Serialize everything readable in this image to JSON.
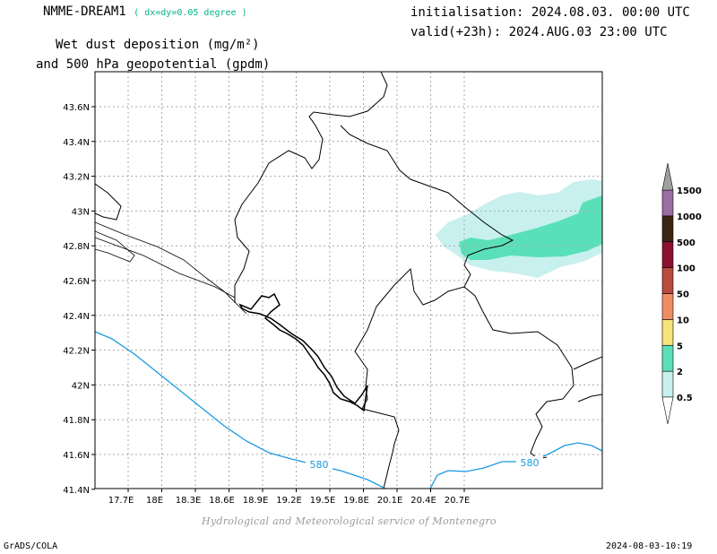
{
  "header": {
    "model": "NMME-DREAM1",
    "resolution": "( dx=dy=0.05 degree )",
    "initialisation": "initialisation: 2024.08.03. 00:00 UTC",
    "valid": "valid(+23h): 2024.AUG.03 23:00 UTC",
    "product_line1": "Wet dust deposition (mg/m²)",
    "product_line2": "and 500 hPa geopotential (gpdm)"
  },
  "map": {
    "lon_ticks": [
      "17.7E",
      "18E",
      "18.3E",
      "18.6E",
      "18.9E",
      "19.2E",
      "19.5E",
      "19.8E",
      "20.1E",
      "20.4E",
      "20.7E"
    ],
    "lat_ticks": [
      "43.6N",
      "43.4N",
      "43.2N",
      "43N",
      "42.8N",
      "42.6N",
      "42.4N",
      "42.2N",
      "42N",
      "41.8N",
      "41.6N",
      "41.4N"
    ],
    "contour_label": "580",
    "contour_color": "#1a9ae0",
    "grid": true
  },
  "colorbar": {
    "levels": [
      "0.5",
      "2",
      "5",
      "10",
      "50",
      "100",
      "500",
      "1000",
      "1500"
    ],
    "colors": [
      "#c8f0ee",
      "#5ae0b8",
      "#f8e27a",
      "#f08c64",
      "#b84a3e",
      "#8c1030",
      "#3c2414",
      "#9c6ca4"
    ]
  },
  "footer": {
    "credit": "Hydrological and Meteorological service of Montenegro",
    "software": "GrADS/COLA",
    "timestamp": "2024-08-03-10:19"
  }
}
